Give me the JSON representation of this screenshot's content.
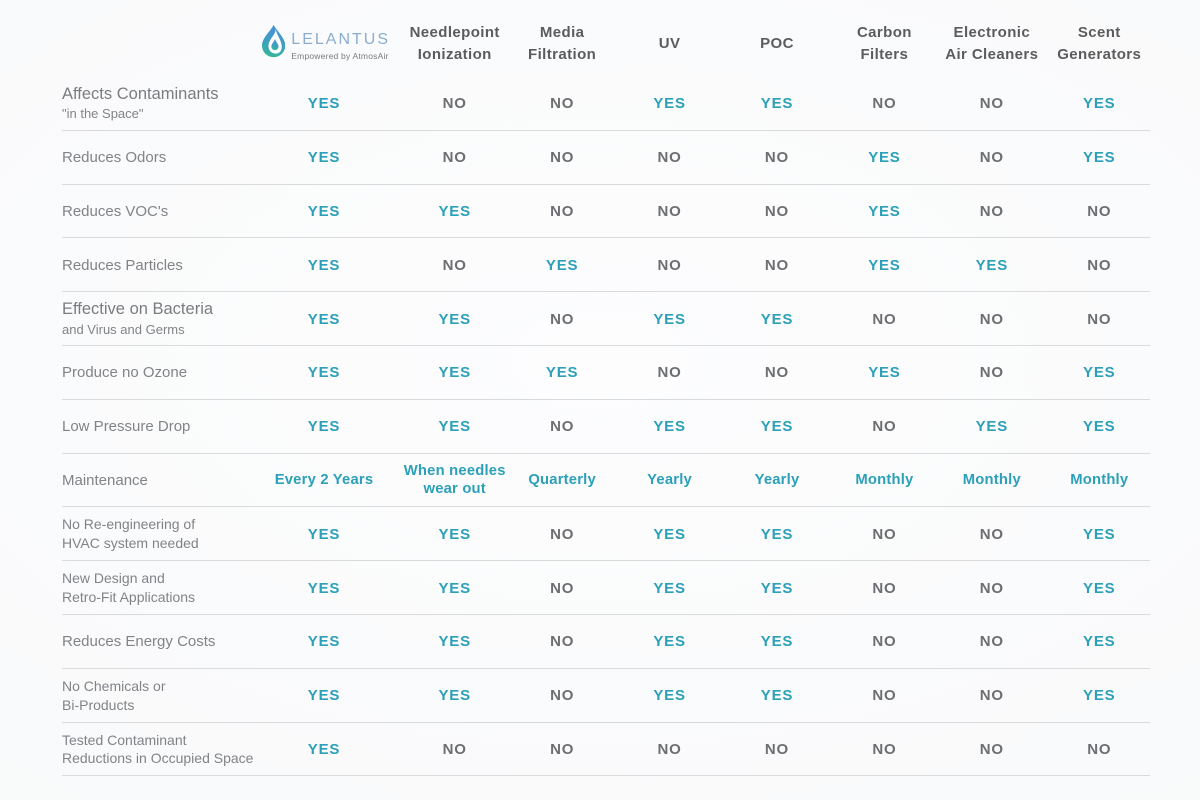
{
  "brand": {
    "name": "LELANTUS",
    "tagline": "Empowered by AtmosAir",
    "logo_colors": {
      "top": "#4a8fd6",
      "bottom": "#35b796"
    },
    "wordmark_color": "#8badd0"
  },
  "colors": {
    "yes_text": "#2ba0b8",
    "no_text": "#6d6e71",
    "header_text": "#5b5c5e",
    "label_text": "#828387",
    "divider": "#d9dadb"
  },
  "chart_data": {
    "type": "table",
    "title": "Air purification technology comparison",
    "columns": [
      [
        "Needlepoint",
        "Ionization"
      ],
      [
        "Media",
        "Filtration"
      ],
      [
        "UV"
      ],
      [
        "POC"
      ],
      [
        "Carbon",
        "Filters"
      ],
      [
        "Electronic",
        "Air Cleaners"
      ],
      [
        "Scent",
        "Generators"
      ]
    ],
    "rows": [
      {
        "label": [
          "Affects Contaminants"
        ],
        "sub": "\"in the Space\"",
        "emphasis": true,
        "values": [
          "YES",
          "NO",
          "NO",
          "YES",
          "YES",
          "NO",
          "NO",
          "YES"
        ]
      },
      {
        "label": [
          "Reduces Odors"
        ],
        "values": [
          "YES",
          "NO",
          "NO",
          "NO",
          "NO",
          "YES",
          "NO",
          "YES"
        ]
      },
      {
        "label": [
          "Reduces VOC's"
        ],
        "values": [
          "YES",
          "YES",
          "NO",
          "NO",
          "NO",
          "YES",
          "NO",
          "NO"
        ]
      },
      {
        "label": [
          "Reduces Particles"
        ],
        "values": [
          "YES",
          "NO",
          "YES",
          "NO",
          "NO",
          "YES",
          "YES",
          "NO"
        ]
      },
      {
        "label": [
          "Effective on Bacteria"
        ],
        "sub": "and Virus and Germs",
        "emphasis": true,
        "values": [
          "YES",
          "YES",
          "NO",
          "YES",
          "YES",
          "NO",
          "NO",
          "NO"
        ]
      },
      {
        "label": [
          "Produce no Ozone"
        ],
        "values": [
          "YES",
          "YES",
          "YES",
          "NO",
          "NO",
          "YES",
          "NO",
          "YES"
        ]
      },
      {
        "label": [
          "Low Pressure Drop"
        ],
        "values": [
          "YES",
          "YES",
          "NO",
          "YES",
          "YES",
          "NO",
          "YES",
          "YES"
        ]
      },
      {
        "label": [
          "Maintenance"
        ],
        "values": [
          "Every 2 Years",
          "When needles wear out",
          "Quarterly",
          "Yearly",
          "Yearly",
          "Monthly",
          "Monthly",
          "Monthly"
        ]
      },
      {
        "label": [
          "No Re-engineering of",
          "HVAC system needed"
        ],
        "values": [
          "YES",
          "YES",
          "NO",
          "YES",
          "YES",
          "NO",
          "NO",
          "YES"
        ]
      },
      {
        "label": [
          "New Design and",
          "Retro-Fit Applications"
        ],
        "values": [
          "YES",
          "YES",
          "NO",
          "YES",
          "YES",
          "NO",
          "NO",
          "YES"
        ]
      },
      {
        "label": [
          "Reduces Energy Costs"
        ],
        "values": [
          "YES",
          "YES",
          "NO",
          "YES",
          "YES",
          "NO",
          "NO",
          "YES"
        ]
      },
      {
        "label": [
          "No Chemicals or",
          "Bi-Products"
        ],
        "values": [
          "YES",
          "YES",
          "NO",
          "YES",
          "YES",
          "NO",
          "NO",
          "YES"
        ]
      },
      {
        "label": [
          "Tested Contaminant",
          "Reductions in Occupied Space"
        ],
        "values": [
          "YES",
          "NO",
          "NO",
          "NO",
          "NO",
          "NO",
          "NO",
          "NO"
        ]
      }
    ]
  }
}
